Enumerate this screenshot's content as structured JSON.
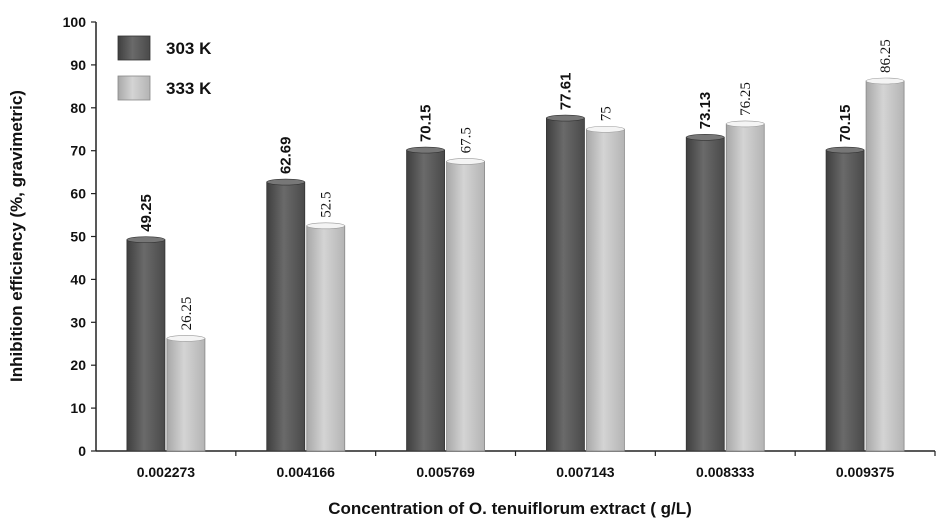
{
  "chart_data": {
    "type": "bar",
    "categories": [
      "0.002273",
      "0.004166",
      "0.005769",
      "0.007143",
      "0.008333",
      "0.009375"
    ],
    "series": [
      {
        "name": "303 K",
        "values": [
          49.25,
          62.69,
          70.15,
          77.61,
          73.13,
          70.15
        ],
        "labels": [
          "49.25",
          "62.69",
          "70.15",
          "77.61",
          "73.13",
          "70.15"
        ],
        "color": "#5a5a5a"
      },
      {
        "name": "333 K",
        "values": [
          26.25,
          52.5,
          67.5,
          75,
          76.25,
          86.25
        ],
        "labels": [
          "26.25",
          "52.5",
          "67.5",
          "75",
          "76.25",
          "86.25"
        ],
        "color": "#bdbdbd"
      }
    ],
    "xlabel": "Concentration of O. tenuiflorum extract ( g/L)",
    "ylabel": "Inhibition efficiency (%, gravimetric)",
    "ylim": [
      0,
      100
    ],
    "yticks": [
      "0",
      "10",
      "20",
      "30",
      "40",
      "50",
      "60",
      "70",
      "80",
      "90",
      "100"
    ],
    "grid": false,
    "legend": "top-left"
  }
}
